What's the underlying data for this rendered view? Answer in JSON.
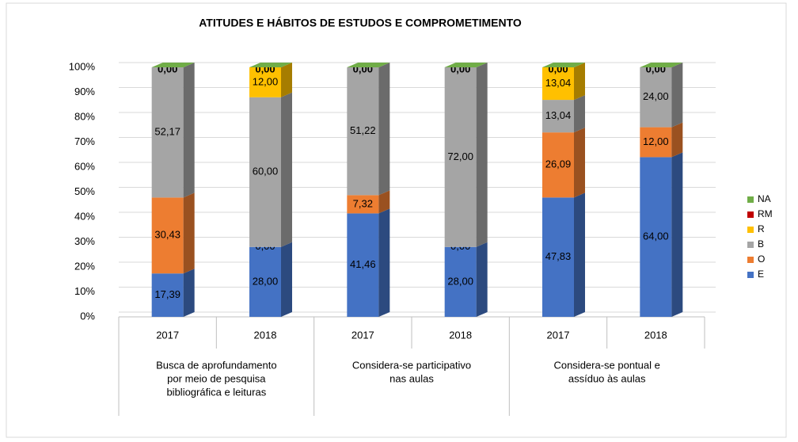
{
  "chart_data": {
    "type": "stacked_bar_100",
    "title": "ATITUDES E HÁBITOS DE ESTUDOS E COMPROMETIMENTO",
    "categories": [
      "2017",
      "2018",
      "2017",
      "2018",
      "2017",
      "2018"
    ],
    "group_labels": [
      [
        "Busca de aprofundamento",
        "por meio de pesquisa",
        "bibliográfica e leituras"
      ],
      [
        "Considera-se participativo",
        "nas aulas"
      ],
      [
        "Considera-se pontual e",
        "assíduo às aulas"
      ]
    ],
    "series": [
      {
        "name": "E",
        "color": "#4472c4",
        "values": [
          17.39,
          28.0,
          41.46,
          28.0,
          47.83,
          64.0
        ],
        "value_labels": [
          "17,39",
          "28,00",
          "41,46",
          "28,00",
          "47,83",
          "64,00"
        ]
      },
      {
        "name": "O",
        "color": "#ed7d31",
        "values": [
          30.43,
          0.0,
          7.32,
          0.0,
          26.09,
          12.0
        ],
        "value_labels": [
          "30,43",
          "0,00",
          "7,32",
          "0,00",
          "26,09",
          "12,00"
        ]
      },
      {
        "name": "B",
        "color": "#a5a5a5",
        "values": [
          52.17,
          60.0,
          51.22,
          72.0,
          13.04,
          24.0
        ],
        "value_labels": [
          "52,17",
          "60,00",
          "51,22",
          "72,00",
          "13,04",
          "24,00"
        ]
      },
      {
        "name": "R",
        "color": "#ffc000",
        "values": [
          null,
          12.0,
          null,
          null,
          13.04,
          null
        ],
        "value_labels": [
          null,
          "12,00",
          null,
          null,
          "13,04",
          null
        ]
      },
      {
        "name": "RM",
        "color": "#c00000",
        "values": [
          null,
          null,
          null,
          null,
          null,
          null
        ]
      },
      {
        "name": "NA",
        "color": "#70ad47",
        "values": [
          0.0,
          0.0,
          0.0,
          0.0,
          0.0,
          0.0
        ],
        "value_labels": [
          "0,00",
          "0,00",
          "0,00",
          "0,00",
          "0,00",
          "0,00"
        ]
      }
    ],
    "ylim": [
      0,
      100
    ],
    "yticks": [
      {
        "value": 0,
        "label": "0%"
      },
      {
        "value": 10,
        "label": "10%"
      },
      {
        "value": 20,
        "label": "20%"
      },
      {
        "value": 30,
        "label": "30%"
      },
      {
        "value": 40,
        "label": "40%"
      },
      {
        "value": 50,
        "label": "50%"
      },
      {
        "value": 60,
        "label": "60%"
      },
      {
        "value": 70,
        "label": "70%"
      },
      {
        "value": 80,
        "label": "80%"
      },
      {
        "value": 90,
        "label": "90%"
      },
      {
        "value": 100,
        "label": "100%"
      }
    ],
    "grid": true,
    "legend": "right"
  }
}
